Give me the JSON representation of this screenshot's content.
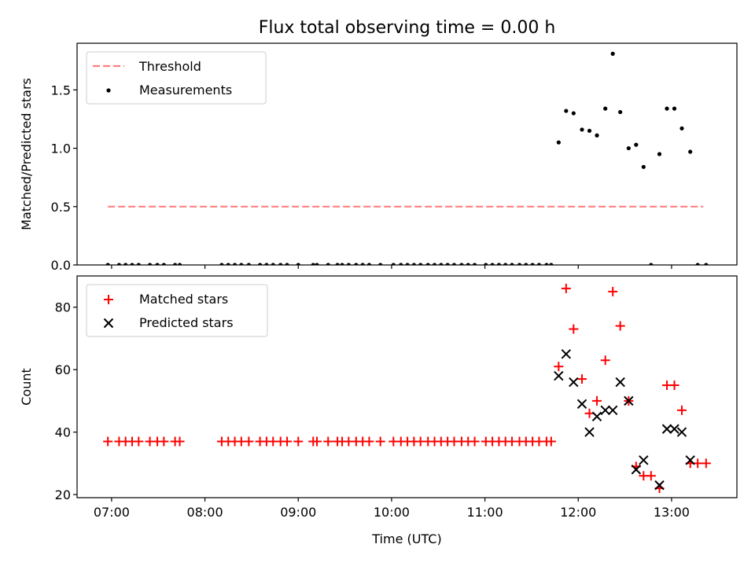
{
  "chart_data": [
    {
      "type": "scatter",
      "title": "Flux total observing time = 0.00 h",
      "ylabel": "Matched/Predicted stars",
      "xlabel": "",
      "xlim": [
        6.63,
        13.7
      ],
      "ylim": [
        0,
        1.9
      ],
      "yticks": [
        0.0,
        0.5,
        1.0,
        1.5
      ],
      "ytick_labels": [
        "0.0",
        "0.5",
        "1.0",
        "1.5"
      ],
      "xticks": [
        7,
        8,
        9,
        10,
        11,
        12,
        13
      ],
      "legend": {
        "placement": "top-left"
      },
      "series": [
        {
          "name": "Threshold",
          "kind": "dashed-line",
          "color": "#ff7f7f",
          "x": [
            6.96,
            13.34
          ],
          "y": [
            0.5,
            0.5
          ]
        },
        {
          "name": "Measurements",
          "kind": "points",
          "color": "#000000",
          "points": [
            [
              6.96,
              0
            ],
            [
              7.08,
              0
            ],
            [
              7.15,
              0
            ],
            [
              7.22,
              0
            ],
            [
              7.29,
              0
            ],
            [
              7.41,
              0
            ],
            [
              7.49,
              0
            ],
            [
              7.56,
              0
            ],
            [
              7.68,
              0
            ],
            [
              7.73,
              0
            ],
            [
              8.18,
              0
            ],
            [
              8.25,
              0
            ],
            [
              8.32,
              0
            ],
            [
              8.39,
              0
            ],
            [
              8.47,
              0
            ],
            [
              8.59,
              0
            ],
            [
              8.66,
              0
            ],
            [
              8.73,
              0
            ],
            [
              8.81,
              0
            ],
            [
              8.88,
              0
            ],
            [
              9.0,
              0
            ],
            [
              9.16,
              0
            ],
            [
              9.2,
              0
            ],
            [
              9.32,
              0
            ],
            [
              9.42,
              0
            ],
            [
              9.47,
              0
            ],
            [
              9.54,
              0
            ],
            [
              9.62,
              0
            ],
            [
              9.69,
              0
            ],
            [
              9.76,
              0
            ],
            [
              9.88,
              0
            ],
            [
              10.02,
              0
            ],
            [
              10.1,
              0
            ],
            [
              10.17,
              0
            ],
            [
              10.24,
              0
            ],
            [
              10.31,
              0
            ],
            [
              10.39,
              0
            ],
            [
              10.46,
              0
            ],
            [
              10.53,
              0
            ],
            [
              10.6,
              0
            ],
            [
              10.67,
              0
            ],
            [
              10.75,
              0
            ],
            [
              10.82,
              0
            ],
            [
              10.89,
              0
            ],
            [
              11.01,
              0
            ],
            [
              11.08,
              0
            ],
            [
              11.15,
              0
            ],
            [
              11.22,
              0
            ],
            [
              11.29,
              0
            ],
            [
              11.37,
              0
            ],
            [
              11.44,
              0
            ],
            [
              11.51,
              0
            ],
            [
              11.58,
              0
            ],
            [
              11.66,
              0
            ],
            [
              11.71,
              0
            ],
            [
              11.79,
              1.05
            ],
            [
              11.87,
              1.32
            ],
            [
              11.95,
              1.3
            ],
            [
              12.04,
              1.16
            ],
            [
              12.12,
              1.15
            ],
            [
              12.2,
              1.11
            ],
            [
              12.29,
              1.34
            ],
            [
              12.37,
              1.81
            ],
            [
              12.45,
              1.31
            ],
            [
              12.54,
              1.0
            ],
            [
              12.62,
              1.03
            ],
            [
              12.7,
              0.84
            ],
            [
              12.78,
              0
            ],
            [
              12.87,
              0.95
            ],
            [
              12.95,
              1.34
            ],
            [
              13.03,
              1.34
            ],
            [
              13.11,
              1.17
            ],
            [
              13.2,
              0.97
            ],
            [
              13.28,
              0
            ],
            [
              13.37,
              0
            ]
          ]
        }
      ]
    },
    {
      "type": "scatter",
      "title": "",
      "ylabel": "Count",
      "xlabel": "Time (UTC)",
      "xlim": [
        6.63,
        13.7
      ],
      "ylim": [
        19,
        90
      ],
      "yticks": [
        20,
        40,
        60,
        80
      ],
      "ytick_labels": [
        "20",
        "40",
        "60",
        "80"
      ],
      "xticks": [
        7,
        8,
        9,
        10,
        11,
        12,
        13
      ],
      "xtick_labels": [
        "07:00",
        "08:00",
        "09:00",
        "10:00",
        "11:00",
        "12:00",
        "13:00"
      ],
      "legend": {
        "placement": "top-left"
      },
      "series": [
        {
          "name": "Matched stars",
          "marker": "plus",
          "color": "#ff0000",
          "points": [
            [
              6.96,
              37
            ],
            [
              7.08,
              37
            ],
            [
              7.15,
              37
            ],
            [
              7.22,
              37
            ],
            [
              7.29,
              37
            ],
            [
              7.41,
              37
            ],
            [
              7.49,
              37
            ],
            [
              7.56,
              37
            ],
            [
              7.68,
              37
            ],
            [
              7.73,
              37
            ],
            [
              8.18,
              37
            ],
            [
              8.25,
              37
            ],
            [
              8.32,
              37
            ],
            [
              8.39,
              37
            ],
            [
              8.47,
              37
            ],
            [
              8.59,
              37
            ],
            [
              8.66,
              37
            ],
            [
              8.73,
              37
            ],
            [
              8.81,
              37
            ],
            [
              8.88,
              37
            ],
            [
              9.0,
              37
            ],
            [
              9.16,
              37
            ],
            [
              9.2,
              37
            ],
            [
              9.32,
              37
            ],
            [
              9.42,
              37
            ],
            [
              9.47,
              37
            ],
            [
              9.54,
              37
            ],
            [
              9.62,
              37
            ],
            [
              9.69,
              37
            ],
            [
              9.76,
              37
            ],
            [
              9.88,
              37
            ],
            [
              10.02,
              37
            ],
            [
              10.1,
              37
            ],
            [
              10.17,
              37
            ],
            [
              10.24,
              37
            ],
            [
              10.31,
              37
            ],
            [
              10.39,
              37
            ],
            [
              10.46,
              37
            ],
            [
              10.53,
              37
            ],
            [
              10.6,
              37
            ],
            [
              10.67,
              37
            ],
            [
              10.75,
              37
            ],
            [
              10.82,
              37
            ],
            [
              10.89,
              37
            ],
            [
              11.01,
              37
            ],
            [
              11.08,
              37
            ],
            [
              11.15,
              37
            ],
            [
              11.22,
              37
            ],
            [
              11.29,
              37
            ],
            [
              11.37,
              37
            ],
            [
              11.44,
              37
            ],
            [
              11.51,
              37
            ],
            [
              11.58,
              37
            ],
            [
              11.66,
              37
            ],
            [
              11.71,
              37
            ],
            [
              11.79,
              61
            ],
            [
              11.87,
              86
            ],
            [
              11.95,
              73
            ],
            [
              12.04,
              57
            ],
            [
              12.12,
              46
            ],
            [
              12.2,
              50
            ],
            [
              12.29,
              63
            ],
            [
              12.37,
              85
            ],
            [
              12.45,
              74
            ],
            [
              12.54,
              50
            ],
            [
              12.62,
              29
            ],
            [
              12.7,
              26
            ],
            [
              12.78,
              26
            ],
            [
              12.87,
              22
            ],
            [
              12.95,
              55
            ],
            [
              13.03,
              55
            ],
            [
              13.11,
              47
            ],
            [
              13.2,
              30
            ],
            [
              13.28,
              30
            ],
            [
              13.37,
              30
            ]
          ]
        },
        {
          "name": "Predicted stars",
          "marker": "x",
          "color": "#000000",
          "points": [
            [
              11.79,
              58
            ],
            [
              11.87,
              65
            ],
            [
              11.95,
              56
            ],
            [
              12.04,
              49
            ],
            [
              12.12,
              40
            ],
            [
              12.2,
              45
            ],
            [
              12.29,
              47
            ],
            [
              12.37,
              47
            ],
            [
              12.45,
              56
            ],
            [
              12.54,
              50
            ],
            [
              12.62,
              28
            ],
            [
              12.7,
              31
            ],
            [
              12.87,
              23
            ],
            [
              12.95,
              41
            ],
            [
              13.03,
              41
            ],
            [
              13.11,
              40
            ],
            [
              13.2,
              31
            ]
          ]
        }
      ]
    }
  ]
}
